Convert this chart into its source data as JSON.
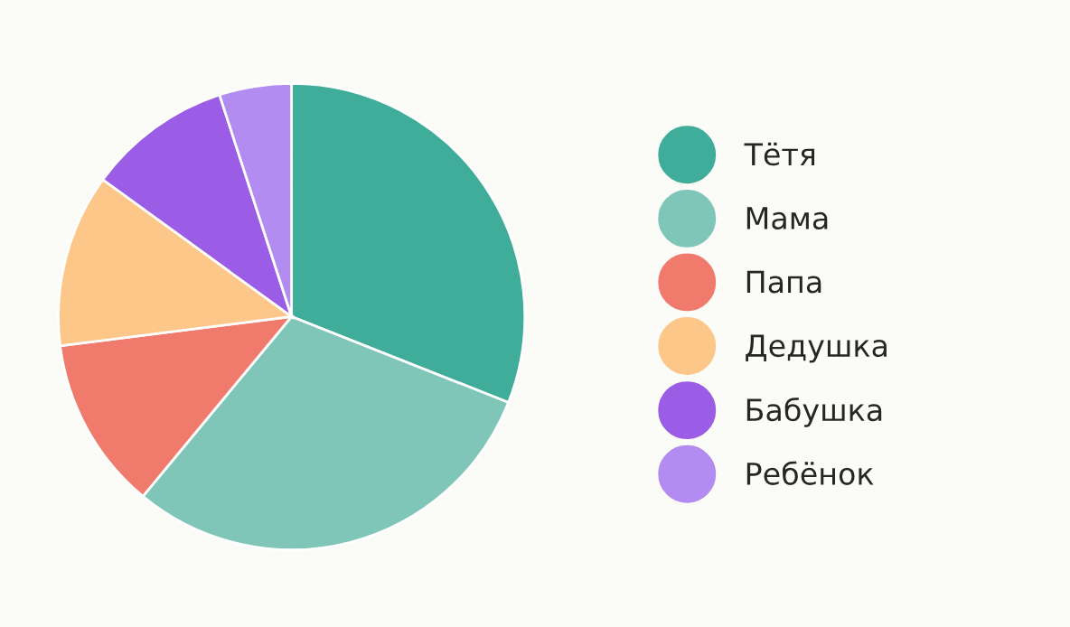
{
  "chart_data": {
    "type": "pie",
    "categories": [
      "Тётя",
      "Мама",
      "Папа",
      "Дедушка",
      "Бабушка",
      "Ребёнок"
    ],
    "values": [
      31,
      30,
      12,
      12,
      10,
      5
    ],
    "colors": [
      "#40ad9a",
      "#7fc6b9",
      "#f07b6d",
      "#fdc78a",
      "#9b5de5",
      "#b28cf0"
    ],
    "legend": "right"
  }
}
